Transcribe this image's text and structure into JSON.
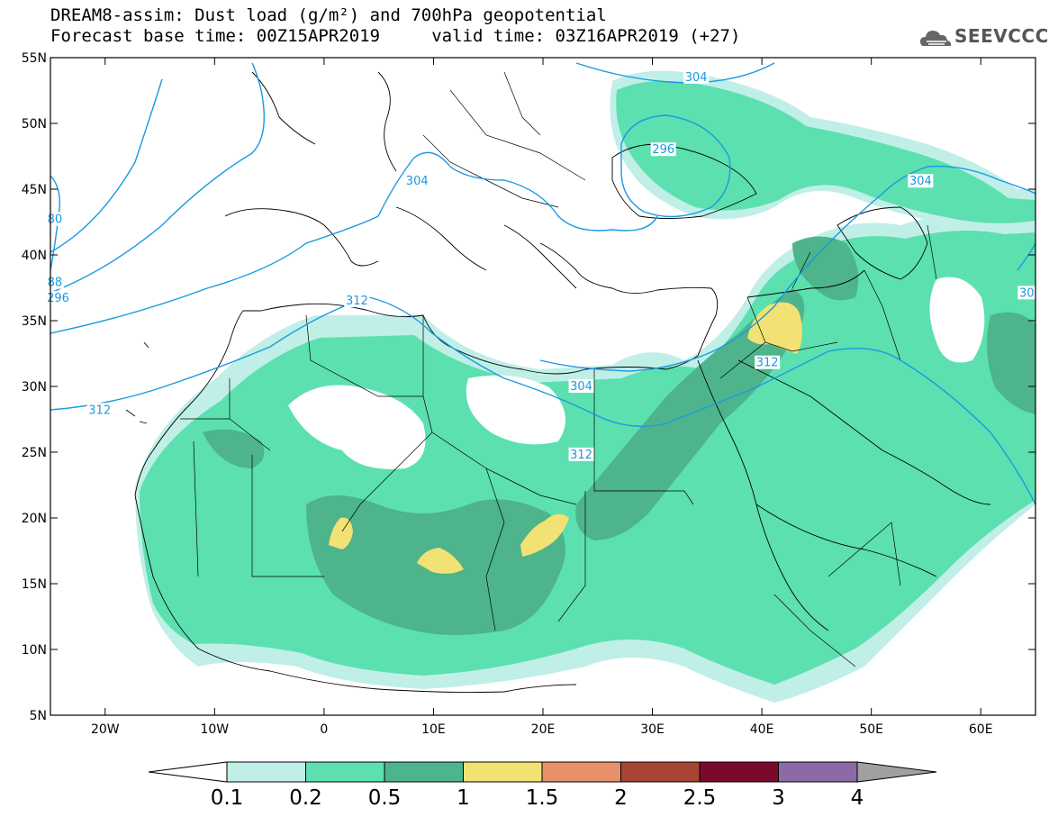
{
  "title": {
    "line1": "DREAM8-assim: Dust load (g/m²) and 700hPa geopotential",
    "line2": "Forecast base time: 00Z15APR2019     valid time: 03Z16APR2019 (+27)"
  },
  "logo": {
    "text": "SEEVCCC",
    "icon": "cloud-logo-icon"
  },
  "map": {
    "lon_range": [
      -25,
      65
    ],
    "lat_range": [
      5,
      55
    ],
    "lon_ticks": [
      {
        "value": -20,
        "label": "20W"
      },
      {
        "value": -10,
        "label": "10W"
      },
      {
        "value": 0,
        "label": "0"
      },
      {
        "value": 10,
        "label": "10E"
      },
      {
        "value": 20,
        "label": "20E"
      },
      {
        "value": 30,
        "label": "30E"
      },
      {
        "value": 40,
        "label": "40E"
      },
      {
        "value": 50,
        "label": "50E"
      },
      {
        "value": 60,
        "label": "60E"
      }
    ],
    "lat_ticks": [
      {
        "value": 55,
        "label": "55N"
      },
      {
        "value": 50,
        "label": "50N"
      },
      {
        "value": 45,
        "label": "45N"
      },
      {
        "value": 40,
        "label": "40N"
      },
      {
        "value": 35,
        "label": "35N"
      },
      {
        "value": 30,
        "label": "30N"
      },
      {
        "value": 25,
        "label": "25N"
      },
      {
        "value": 20,
        "label": "20N"
      },
      {
        "value": 15,
        "label": "15N"
      },
      {
        "value": 10,
        "label": "10N"
      },
      {
        "value": 5,
        "label": "5N"
      }
    ],
    "contour_labels": [
      {
        "text": "304",
        "lon": 34,
        "lat": 53.5
      },
      {
        "text": "296",
        "lon": 31,
        "lat": 48
      },
      {
        "text": "304",
        "lon": 8.5,
        "lat": 45.6
      },
      {
        "text": "304",
        "lon": 54.5,
        "lat": 45.6
      },
      {
        "text": "312",
        "lon": 3,
        "lat": 36.5
      },
      {
        "text": "312",
        "lon": 40.5,
        "lat": 31.8
      },
      {
        "text": "304",
        "lon": 23.5,
        "lat": 30
      },
      {
        "text": "312",
        "lon": 23.5,
        "lat": 24.8
      },
      {
        "text": "312",
        "lon": -20.5,
        "lat": 28.2
      },
      {
        "text": "80",
        "lon": -24.6,
        "lat": 42.7
      },
      {
        "text": "88",
        "lon": -24.6,
        "lat": 37.9
      },
      {
        "text": "296",
        "lon": -24.3,
        "lat": 36.7
      },
      {
        "text": "30",
        "lon": 64.2,
        "lat": 37.1
      }
    ],
    "colors": {
      "c01": "#c0efe8",
      "c02": "#5ce0b0",
      "c05": "#4db48b",
      "c1": "#f2e274",
      "geopotential": "#1a9ae0",
      "coast": "#000000"
    }
  },
  "colorbar": {
    "levels": [
      "0.1",
      "0.2",
      "0.5",
      "1",
      "1.5",
      "2",
      "2.5",
      "3",
      "4"
    ],
    "colors": [
      "#c0efe8",
      "#5ce0b0",
      "#4db48b",
      "#f2e274",
      "#e8906a",
      "#a84434",
      "#7a0a2c",
      "#8b6aa6"
    ],
    "under_color": "#ffffff",
    "over_color": "#a0a0a0"
  }
}
